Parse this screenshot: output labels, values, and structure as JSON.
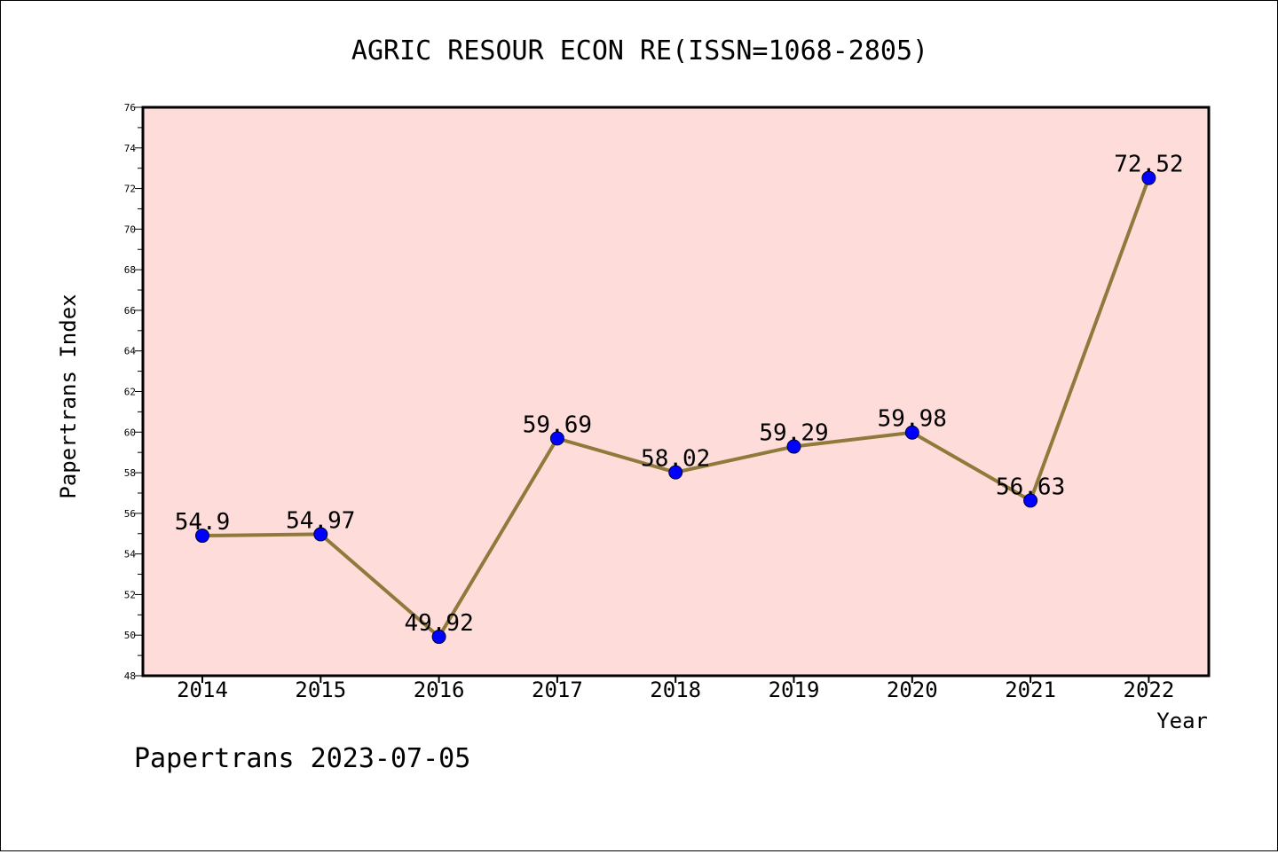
{
  "chart_data": {
    "type": "line",
    "title": "AGRIC RESOUR ECON RE(ISSN=1068-2805)",
    "xlabel": "Year",
    "ylabel": "Papertrans Index",
    "categories": [
      "2014",
      "2015",
      "2016",
      "2017",
      "2018",
      "2019",
      "2020",
      "2021",
      "2022"
    ],
    "series": [
      {
        "values": [
          54.9,
          54.97,
          49.92,
          59.69,
          58.02,
          59.29,
          59.98,
          56.63,
          72.52
        ],
        "labels": [
          "54.9",
          "54.97",
          "49.92",
          "59.69",
          "58.02",
          "59.29",
          "59.98",
          "56.63",
          "72.52"
        ]
      }
    ],
    "ylim": [
      48,
      76
    ],
    "yticks": [
      48,
      50,
      52,
      54,
      56,
      58,
      60,
      62,
      64,
      66,
      68,
      70,
      72,
      74,
      76
    ],
    "grid": false,
    "colors": {
      "plot_background": "#FDDCDA",
      "line": "#8F7A3C",
      "marker": "#0000FF"
    }
  },
  "footer": {
    "credit": "Papertrans 2023-07-05"
  }
}
